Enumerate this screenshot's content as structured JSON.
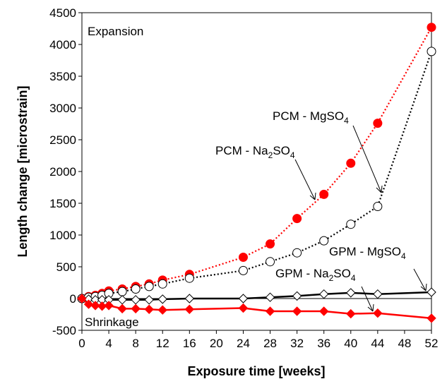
{
  "chart_data": {
    "type": "line",
    "xlabel": "Exposure time [weeks]",
    "ylabel": "Length change [microstrain]",
    "xlim": [
      0,
      52
    ],
    "ylim": [
      -500,
      4500
    ],
    "x_ticks": [
      0,
      4,
      8,
      12,
      16,
      20,
      24,
      28,
      32,
      36,
      40,
      44,
      48,
      52
    ],
    "y_ticks": [
      -500,
      0,
      500,
      1000,
      1500,
      2000,
      2500,
      3000,
      3500,
      4000,
      4500
    ],
    "grid": false,
    "legend": "none",
    "series": [
      {
        "name": "PCM - Na2SO4",
        "label_prefix": "PCM - Na",
        "label_sub1": "2",
        "label_mid": "SO",
        "label_sub2": "4",
        "color": "#ff0000",
        "marker": "circle-filled",
        "line": "dotted",
        "x": [
          0,
          1,
          2,
          3,
          4,
          6,
          8,
          10,
          12,
          16,
          24,
          28,
          32,
          36,
          40,
          44,
          52
        ],
        "y": [
          0,
          30,
          50,
          80,
          120,
          150,
          190,
          230,
          290,
          380,
          650,
          860,
          1260,
          1640,
          2130,
          2760,
          4270
        ]
      },
      {
        "name": "PCM - MgSO4",
        "label_prefix": "PCM - MgSO",
        "label_sub": "4",
        "color": "#000000",
        "marker": "circle-open",
        "line": "dotted",
        "x": [
          0,
          1,
          2,
          3,
          4,
          6,
          8,
          10,
          12,
          16,
          24,
          28,
          32,
          36,
          40,
          44,
          52
        ],
        "y": [
          0,
          20,
          30,
          50,
          80,
          110,
          150,
          190,
          230,
          320,
          440,
          580,
          720,
          910,
          1170,
          1450,
          3890
        ]
      },
      {
        "name": "GPM - MgSO4",
        "label_prefix": "GPM - MgSO",
        "label_sub": "4",
        "color": "#000000",
        "marker": "diamond-open",
        "line": "solid",
        "x": [
          0,
          1,
          2,
          3,
          4,
          6,
          8,
          10,
          12,
          16,
          24,
          28,
          32,
          36,
          40,
          44,
          52
        ],
        "y": [
          0,
          -10,
          -20,
          -20,
          -20,
          -20,
          -20,
          -20,
          -10,
          0,
          0,
          20,
          40,
          70,
          90,
          70,
          100
        ]
      },
      {
        "name": "GPM - Na2SO4",
        "label_prefix": "GPM - Na",
        "label_sub1": "2",
        "label_mid": "SO",
        "label_sub2": "4",
        "color": "#ff0000",
        "marker": "diamond-filled",
        "line": "solid",
        "x": [
          0,
          1,
          2,
          3,
          4,
          6,
          8,
          10,
          12,
          16,
          24,
          28,
          32,
          36,
          40,
          44,
          52
        ],
        "y": [
          0,
          -90,
          -110,
          -120,
          -110,
          -160,
          -160,
          -170,
          -180,
          -170,
          -150,
          -200,
          -200,
          -200,
          -240,
          -230,
          -310
        ]
      }
    ],
    "annotations": [
      "Expansion",
      "Shrinkage"
    ]
  }
}
